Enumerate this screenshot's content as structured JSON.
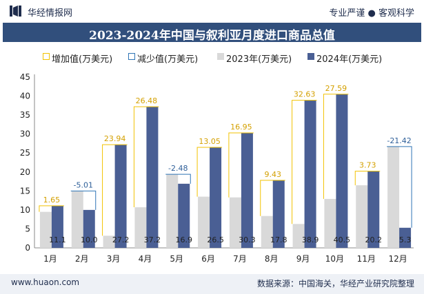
{
  "header": {
    "brand": "华经情报网",
    "tagline": "专业严谨 ● 客观科学"
  },
  "title": "2023-2024年中国与叙利亚月度进口商品总值",
  "legend": {
    "increase": "增加值(万美元)",
    "decrease": "减少值(万美元)",
    "y2023": "2023年(万美元)",
    "y2024": "2024年(万美元)"
  },
  "footer": {
    "website": "www.huaon.com",
    "source": "数据来源：中国海关，华经产业研究院整理"
  },
  "colors": {
    "bar2023": "#d9d9d9",
    "bar2024": "#4a5f94",
    "increase": "#f2c200",
    "decrease": "#2e74b5",
    "titleBar": "#314f7c"
  },
  "chart_data": {
    "type": "bar",
    "categories": [
      "1月",
      "2月",
      "3月",
      "4月",
      "5月",
      "6月",
      "7月",
      "8月",
      "9月",
      "10月",
      "11月",
      "12月"
    ],
    "series": [
      {
        "name": "2023年(万美元)",
        "values": [
          9.5,
          15.0,
          3.2,
          10.7,
          19.4,
          13.5,
          13.3,
          8.4,
          6.3,
          12.9,
          16.5,
          26.7
        ]
      },
      {
        "name": "2024年(万美元)",
        "values": [
          11.1,
          10.0,
          27.2,
          37.2,
          16.9,
          26.5,
          30.3,
          17.8,
          38.9,
          40.5,
          20.2,
          5.3
        ]
      }
    ],
    "change": [
      "1.65",
      "-5.01",
      "23.94",
      "26.48",
      "-2.48",
      "13.05",
      "16.95",
      "9.43",
      "32.63",
      "27.59",
      "3.73",
      "-21.42"
    ],
    "data_labels_2024": [
      "11.1",
      "10.0",
      "27.2",
      "37.2",
      "16.9",
      "26.5",
      "30.3",
      "17.8",
      "38.9",
      "40.5",
      "20.2",
      "5.3"
    ],
    "ylim": [
      0,
      45
    ],
    "yticks": [
      "0",
      "5",
      "10",
      "15",
      "20",
      "25",
      "30",
      "35",
      "40",
      "45"
    ]
  }
}
